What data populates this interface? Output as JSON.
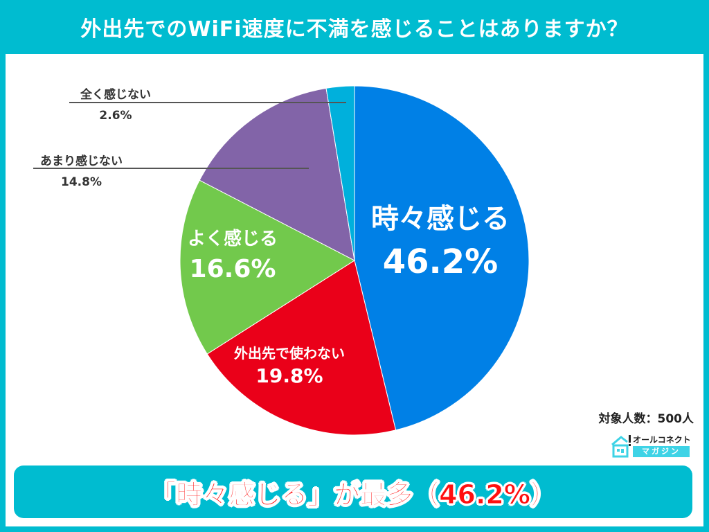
{
  "header": {
    "title": "外出先でのWiFi速度に不満を感じることはありますか？"
  },
  "chart_data": {
    "type": "pie",
    "title": "外出先でのWiFi速度に不満を感じることはありますか？",
    "start_angle": "12 o'clock, clockwise",
    "categories": [
      "時々感じる",
      "外出先で使わない",
      "よく感じる",
      "あまり感じない",
      "全く感じない"
    ],
    "values": [
      46.2,
      19.8,
      16.6,
      14.8,
      2.6
    ],
    "unit": "%",
    "colors": [
      "#0080e6",
      "#ea0019",
      "#72c94c",
      "#8264a8",
      "#00b0dc"
    ],
    "labels": [
      {
        "name": "時々感じる",
        "value": "46.2%",
        "position": "inside"
      },
      {
        "name": "外出先で使わない",
        "value": "19.8%",
        "position": "inside"
      },
      {
        "name": "よく感じる",
        "value": "16.6%",
        "position": "inside"
      },
      {
        "name": "あまり感じない",
        "value": "14.8%",
        "position": "callout-left"
      },
      {
        "name": "全く感じない",
        "value": "2.6%",
        "position": "callout-left"
      }
    ],
    "sample_size": 500
  },
  "footnote": {
    "sample": "対象人数：500人"
  },
  "logo": {
    "top": "オールコネクト",
    "bottom": "マガジン"
  },
  "banner": {
    "text": "「時々感じる」が最多（46.2%）"
  },
  "colors": {
    "frame": "#00bcd0",
    "banner_text": "#ff1010"
  }
}
